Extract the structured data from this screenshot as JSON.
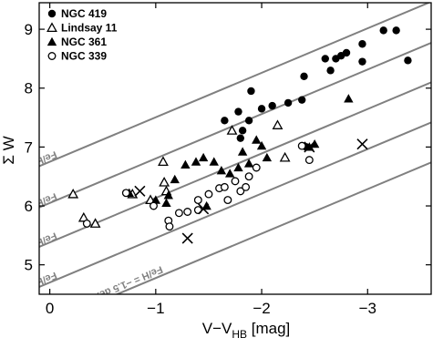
{
  "chart_data": {
    "type": "scatter",
    "xlabel": "V−V",
    "xlabel_sub": "HB",
    "xlabel_unit": " [mag]",
    "ylabel": "Σ W",
    "xlim": [
      0.1,
      -3.6
    ],
    "ylim": [
      4.5,
      9.45
    ],
    "xticks": [
      0,
      -1,
      -2,
      -3
    ],
    "xtick_labels": [
      "0",
      "−1",
      "−2",
      "−3"
    ],
    "yticks": [
      5,
      6,
      7,
      8,
      9
    ],
    "ytick_labels": [
      "5",
      "6",
      "7",
      "8",
      "9"
    ],
    "legend_position": "top-left",
    "iso_lines": [
      {
        "label": "Fe/H = −0.5 dex",
        "feh": -0.5,
        "intercept": 6.75,
        "label_x": -0.05,
        "label_y": 6.93
      },
      {
        "label": "Fe/H = −0.75 dex",
        "feh": -0.75,
        "intercept": 6.05,
        "label_x": -0.05,
        "label_y": 6.22
      },
      {
        "label": "Fe/H = −1.0 dex",
        "feh": -1.0,
        "intercept": 5.38,
        "label_x": -0.05,
        "label_y": 5.55
      },
      {
        "label": "Fe/H = −1.25 dex",
        "feh": -1.25,
        "intercept": 4.7,
        "label_x": -0.05,
        "label_y": 4.88
      },
      {
        "label": "Fe/H = −1.5 dex",
        "feh": -1.5,
        "intercept": 4.02,
        "label_x": -1.05,
        "label_y": 4.98
      }
    ],
    "line_slope": -0.755,
    "line_color": "#808080",
    "series": [
      {
        "name": "NGC 419",
        "marker": "filled-circle",
        "points": [
          [
            -1.65,
            7.45
          ],
          [
            -1.78,
            7.6
          ],
          [
            -1.8,
            7.15
          ],
          [
            -1.82,
            7.28
          ],
          [
            -1.88,
            7.45
          ],
          [
            -1.9,
            7.95
          ],
          [
            -2.0,
            7.65
          ],
          [
            -2.1,
            7.7
          ],
          [
            -2.25,
            7.75
          ],
          [
            -2.38,
            7.8
          ],
          [
            -2.4,
            8.2
          ],
          [
            -2.6,
            8.5
          ],
          [
            -2.65,
            8.3
          ],
          [
            -2.7,
            8.5
          ],
          [
            -2.75,
            8.55
          ],
          [
            -2.8,
            8.6
          ],
          [
            -2.95,
            8.45
          ],
          [
            -2.95,
            8.75
          ],
          [
            -3.15,
            8.98
          ],
          [
            -3.27,
            8.98
          ],
          [
            -3.38,
            8.47
          ],
          [
            -2.42,
            7.0
          ]
        ]
      },
      {
        "name": "Lindsay 11",
        "marker": "open-triangle",
        "points": [
          [
            -0.22,
            6.2
          ],
          [
            -0.32,
            5.8
          ],
          [
            -0.43,
            5.7
          ],
          [
            -0.78,
            6.2
          ],
          [
            -0.95,
            6.1
          ],
          [
            -1.07,
            6.75
          ],
          [
            -1.08,
            6.4
          ],
          [
            -1.1,
            6.25
          ],
          [
            -1.72,
            7.28
          ],
          [
            -2.15,
            7.37
          ],
          [
            -2.22,
            6.82
          ]
        ]
      },
      {
        "name": "NGC 361",
        "marker": "filled-triangle",
        "points": [
          [
            -0.75,
            6.22
          ],
          [
            -1.0,
            6.1
          ],
          [
            -1.1,
            6.05
          ],
          [
            -1.12,
            6.18
          ],
          [
            -1.18,
            6.45
          ],
          [
            -1.28,
            6.7
          ],
          [
            -1.38,
            6.75
          ],
          [
            -1.45,
            6.82
          ],
          [
            -1.55,
            6.75
          ],
          [
            -1.62,
            6.6
          ],
          [
            -1.7,
            6.55
          ],
          [
            -1.78,
            6.65
          ],
          [
            -1.82,
            6.92
          ],
          [
            -1.88,
            6.72
          ],
          [
            -1.95,
            7.12
          ],
          [
            -2.0,
            7.02
          ],
          [
            -2.05,
            6.82
          ],
          [
            -2.45,
            7.0
          ],
          [
            -2.5,
            7.05
          ],
          [
            -2.82,
            7.82
          ],
          [
            -1.48,
            6.0
          ]
        ]
      },
      {
        "name": "NGC 339",
        "marker": "open-circle",
        "points": [
          [
            -0.35,
            5.7
          ],
          [
            -0.72,
            6.22
          ],
          [
            -0.98,
            6.0
          ],
          [
            -1.12,
            5.75
          ],
          [
            -1.13,
            5.65
          ],
          [
            -1.22,
            5.88
          ],
          [
            -1.3,
            5.9
          ],
          [
            -1.4,
            6.1
          ],
          [
            -1.4,
            5.93
          ],
          [
            -1.5,
            6.2
          ],
          [
            -1.6,
            6.3
          ],
          [
            -1.65,
            6.32
          ],
          [
            -1.68,
            6.1
          ],
          [
            -1.75,
            6.42
          ],
          [
            -1.8,
            6.25
          ],
          [
            -1.85,
            6.32
          ],
          [
            -1.88,
            6.5
          ],
          [
            -1.95,
            6.65
          ],
          [
            -2.38,
            7.02
          ],
          [
            -2.45,
            6.78
          ]
        ]
      }
    ],
    "crossed_points": [
      [
        -0.85,
        6.25
      ],
      [
        -1.3,
        5.45
      ],
      [
        -1.45,
        5.95
      ],
      [
        -2.45,
        7.0
      ],
      [
        -2.95,
        7.05
      ]
    ]
  }
}
